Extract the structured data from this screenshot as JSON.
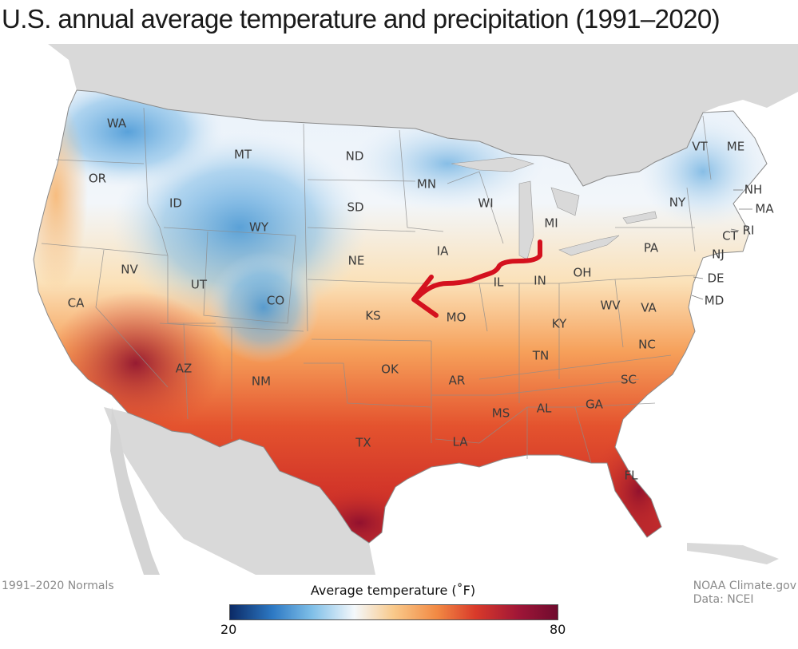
{
  "title": "U.S. annual average temperature and precipitation (1991–2020)",
  "footer": {
    "left": "1991–2020 Normals",
    "credit": "NOAA Climate.gov",
    "data_source": "Data: NCEI"
  },
  "legend": {
    "title": "Average temperature (˚F)",
    "min": "20",
    "max": "80",
    "colors": [
      "#0b2a66",
      "#2d79c4",
      "#7fbfe8",
      "#f4f8fb",
      "#f9c98a",
      "#f28a44",
      "#d93a2a",
      "#a01637",
      "#6f0b2e"
    ]
  },
  "states": {
    "WA": "WA",
    "OR": "OR",
    "CA": "CA",
    "NV": "NV",
    "ID": "ID",
    "MT": "MT",
    "WY": "WY",
    "UT": "UT",
    "CO": "CO",
    "AZ": "AZ",
    "NM": "NM",
    "ND": "ND",
    "SD": "SD",
    "NE": "NE",
    "KS": "KS",
    "OK": "OK",
    "TX": "TX",
    "MN": "MN",
    "IA": "IA",
    "MO": "MO",
    "AR": "AR",
    "LA": "LA",
    "WI": "WI",
    "IL": "IL",
    "MI": "MI",
    "IN": "IN",
    "OH": "OH",
    "KY": "KY",
    "TN": "TN",
    "MS": "MS",
    "AL": "AL",
    "GA": "GA",
    "FL": "FL",
    "SC": "SC",
    "NC": "NC",
    "VA": "VA",
    "WV": "WV",
    "PA": "PA",
    "NY": "NY",
    "VT": "VT",
    "ME": "ME",
    "NH": "NH",
    "MA": "MA",
    "CT": "CT",
    "RI": "RI",
    "NJ": "NJ",
    "DE": "DE",
    "MD": "MD"
  },
  "annotation": {
    "color": "#d4111e"
  }
}
